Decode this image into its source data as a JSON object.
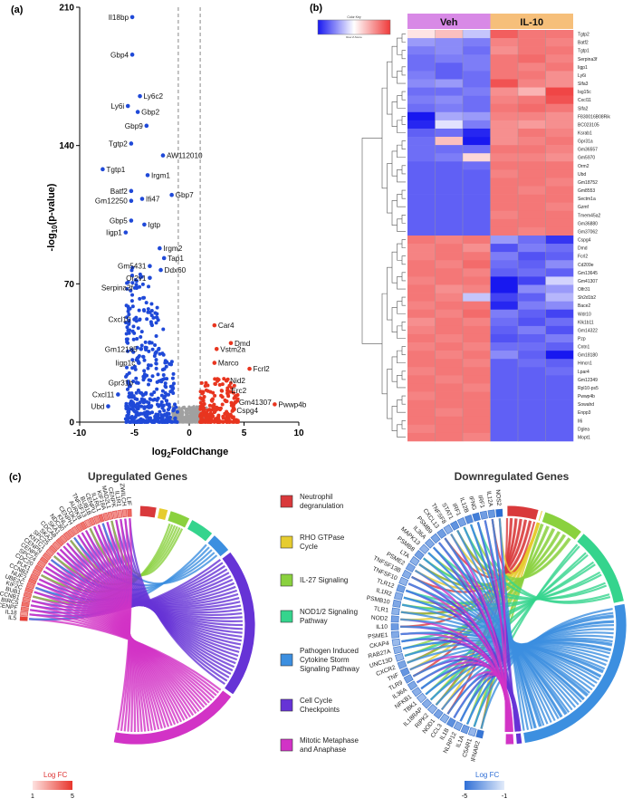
{
  "panels": {
    "a": "(a)",
    "b": "(b)",
    "c": "(c)"
  },
  "colors": {
    "blue": "#1f49d8",
    "red": "#e8351f",
    "grey": "#a0a0a0",
    "heat_low": "#1818f0",
    "heat_high": "#ef3a3a",
    "veh_band": "#d889e6",
    "il10_band": "#f6bf7a"
  },
  "chart_data": [
    {
      "type": "scatter",
      "panel": "a",
      "title": "",
      "xlabel": "log2FoldChange",
      "xlabel_main": "log",
      "xlabel_sub": "2",
      "xlabel_rest": "FoldChange",
      "ylabel": "-log10(p-value)",
      "ylabel_main": "-log",
      "ylabel_sub": "10",
      "ylabel_rest": "(p-value)",
      "xlim": [
        -10,
        10
      ],
      "ylim": [
        0,
        210
      ],
      "xticks": [
        -10,
        -5,
        0,
        5,
        10
      ],
      "yticks": [
        0,
        70,
        140,
        210
      ],
      "threshold_lines_x": [
        -1,
        1
      ],
      "labeled_points": [
        {
          "gene": "Il18bp",
          "x": -5.2,
          "y": 205,
          "side": "left"
        },
        {
          "gene": "Gbp4",
          "x": -5.2,
          "y": 186,
          "side": "left"
        },
        {
          "gene": "Ly6c2",
          "x": -4.5,
          "y": 165,
          "side": "right"
        },
        {
          "gene": "Ly6i",
          "x": -5.6,
          "y": 160,
          "side": "left"
        },
        {
          "gene": "Gbp2",
          "x": -4.7,
          "y": 157,
          "side": "right"
        },
        {
          "gene": "Gbp9",
          "x": -3.9,
          "y": 150,
          "side": "left"
        },
        {
          "gene": "AW112010",
          "x": -2.4,
          "y": 135,
          "side": "right"
        },
        {
          "gene": "Tgtp2",
          "x": -5.3,
          "y": 141,
          "side": "left"
        },
        {
          "gene": "Tgtp1",
          "x": -7.9,
          "y": 128,
          "side": "right"
        },
        {
          "gene": "Irgm1",
          "x": -3.8,
          "y": 125,
          "side": "right"
        },
        {
          "gene": "Gbp7",
          "x": -1.6,
          "y": 115,
          "side": "right"
        },
        {
          "gene": "Batf2",
          "x": -5.3,
          "y": 117,
          "side": "left"
        },
        {
          "gene": "Gm12250",
          "x": -5.3,
          "y": 112,
          "side": "left"
        },
        {
          "gene": "Ifi47",
          "x": -4.3,
          "y": 113,
          "side": "right"
        },
        {
          "gene": "Gbp5",
          "x": -5.3,
          "y": 102,
          "side": "left"
        },
        {
          "gene": "Igtp",
          "x": -4.1,
          "y": 100,
          "side": "right"
        },
        {
          "gene": "Iigp1",
          "x": -5.8,
          "y": 96,
          "side": "left"
        },
        {
          "gene": "Irgm2",
          "x": -2.7,
          "y": 88,
          "side": "right"
        },
        {
          "gene": "Tap1",
          "x": -2.3,
          "y": 83,
          "side": "right"
        },
        {
          "gene": "Gm5431",
          "x": -3.6,
          "y": 79,
          "side": "left"
        },
        {
          "gene": "Ddx60",
          "x": -2.6,
          "y": 77,
          "side": "right"
        },
        {
          "gene": "Or2v1",
          "x": -3.6,
          "y": 73,
          "side": "left"
        },
        {
          "gene": "Serpina3f",
          "x": -4.8,
          "y": 68,
          "side": "left"
        },
        {
          "gene": "Cxcl10",
          "x": -5.0,
          "y": 52,
          "side": "left"
        },
        {
          "gene": "Gm12185",
          "x": -4.4,
          "y": 37,
          "side": "left"
        },
        {
          "gene": "Iigp1c",
          "x": -4.6,
          "y": 30,
          "side": "left"
        },
        {
          "gene": "Gpr31b",
          "x": -4.8,
          "y": 20,
          "side": "left"
        },
        {
          "gene": "Cxcl11",
          "x": -6.5,
          "y": 14,
          "side": "left"
        },
        {
          "gene": "Ubd",
          "x": -7.4,
          "y": 8,
          "side": "left"
        },
        {
          "gene": "Car4",
          "x": 2.3,
          "y": 49,
          "side": "right"
        },
        {
          "gene": "Dmd",
          "x": 3.8,
          "y": 40,
          "side": "right"
        },
        {
          "gene": "Vstm2a",
          "x": 2.5,
          "y": 37,
          "side": "right"
        },
        {
          "gene": "Marco",
          "x": 2.3,
          "y": 30,
          "side": "right"
        },
        {
          "gene": "Fcrl2",
          "x": 5.5,
          "y": 27,
          "side": "right"
        },
        {
          "gene": "Nid2",
          "x": 3.4,
          "y": 21,
          "side": "right"
        },
        {
          "gene": "Erc2",
          "x": 3.5,
          "y": 16,
          "side": "right"
        },
        {
          "gene": "Gm41307",
          "x": 4.2,
          "y": 10,
          "side": "right"
        },
        {
          "gene": "Cspg4",
          "x": 4.0,
          "y": 6,
          "side": "right"
        },
        {
          "gene": "Pwwp4b",
          "x": 7.8,
          "y": 9,
          "side": "right"
        }
      ]
    },
    {
      "type": "heatmap",
      "panel": "b",
      "legend_title": "Color Key",
      "legend_sub": "Row Z-Score",
      "groups": [
        {
          "name": "Veh",
          "samples": 3
        },
        {
          "name": "IL-10",
          "samples": 3
        }
      ],
      "genes": [
        "Tgtp2",
        "Batf2",
        "Tgtp1",
        "Serpina3f",
        "Iigp1",
        "Ly6i",
        "Slfa3",
        "Isg15c",
        "Cxcl11",
        "Slfa2",
        "F830016B08Rik",
        "BC023105",
        "Ksrab1",
        "Gpr31a",
        "Gm36557",
        "Gm5970",
        "Orm2",
        "Ubd",
        "Gm18752",
        "Gm8553",
        "Sectm1a",
        "Gzmf",
        "Tmem45a2",
        "Gm36880",
        "Gm37062",
        "Cspg4",
        "Dmd",
        "Fcrl2",
        "Cd209e",
        "Gm13645",
        "Gm41307",
        "Olfr31",
        "Sh2d1b2",
        "Bace2",
        "Wdr10",
        "Klk1b11",
        "Gm14322",
        "Pzp",
        "Cntn1",
        "Gm18180",
        "Hmcn1",
        "Lpar4",
        "Gm12349",
        "Rpl10-ps5",
        "Pwwp4b",
        "Sowahd",
        "Enpp3",
        "Il6",
        "Dglea",
        "Mopt1"
      ],
      "z_scores": [
        [
          0.1,
          0.4,
          -0.3,
          1.2,
          1.0,
          1.0
        ],
        [
          -0.6,
          -0.7,
          -0.8,
          0.9,
          1.0,
          0.9
        ],
        [
          -0.8,
          -0.7,
          -0.9,
          0.8,
          1.0,
          1.0
        ],
        [
          -0.9,
          -0.8,
          -0.8,
          1.0,
          1.1,
          0.9
        ],
        [
          -0.9,
          -1.0,
          -0.8,
          1.0,
          0.9,
          1.0
        ],
        [
          -0.8,
          -1.0,
          -0.9,
          1.0,
          1.0,
          0.8
        ],
        [
          -0.7,
          -0.6,
          -0.9,
          1.3,
          0.9,
          0.8
        ],
        [
          -0.9,
          -0.9,
          -0.8,
          0.8,
          0.5,
          1.4
        ],
        [
          -0.8,
          -0.7,
          -0.9,
          0.9,
          1.0,
          1.3
        ],
        [
          -0.9,
          -0.8,
          -0.9,
          1.0,
          1.1,
          1.0
        ],
        [
          -1.5,
          -0.5,
          -0.6,
          0.9,
          0.9,
          0.8
        ],
        [
          -1.4,
          -0.1,
          -0.8,
          0.8,
          0.7,
          0.8
        ],
        [
          -1.0,
          -0.9,
          -1.4,
          0.8,
          1.0,
          0.9
        ],
        [
          -0.9,
          0.4,
          -1.5,
          0.8,
          0.9,
          1.0
        ],
        [
          -0.9,
          -0.9,
          -0.9,
          1.0,
          1.0,
          0.9
        ],
        [
          -0.9,
          -0.8,
          0.2,
          0.9,
          0.9,
          0.8
        ],
        [
          -1.0,
          -1.0,
          -0.9,
          1.0,
          1.0,
          1.0
        ],
        [
          -1.0,
          -1.0,
          -1.0,
          0.9,
          1.0,
          1.0
        ],
        [
          -1.0,
          -1.0,
          -1.0,
          1.0,
          1.0,
          0.9
        ],
        [
          -1.0,
          -1.0,
          -1.0,
          1.0,
          0.9,
          1.0
        ],
        [
          -1.0,
          -1.0,
          -1.0,
          1.0,
          1.0,
          1.0
        ],
        [
          -1.0,
          -1.0,
          -1.0,
          1.0,
          1.0,
          0.9
        ],
        [
          -1.0,
          -1.0,
          -1.0,
          0.9,
          1.0,
          1.0
        ],
        [
          -1.0,
          -1.0,
          -1.0,
          1.0,
          1.0,
          1.0
        ],
        [
          -1.0,
          -1.0,
          -1.0,
          1.0,
          0.9,
          1.0
        ],
        [
          1.0,
          0.9,
          1.0,
          -0.6,
          -0.9,
          -1.3
        ],
        [
          0.9,
          1.0,
          0.8,
          -1.1,
          -0.8,
          -0.9
        ],
        [
          0.9,
          1.0,
          1.0,
          -0.8,
          -1.1,
          -1.0
        ],
        [
          1.0,
          0.9,
          1.1,
          -0.9,
          -1.0,
          -0.7
        ],
        [
          1.0,
          1.0,
          0.9,
          -1.0,
          -0.9,
          -1.0
        ],
        [
          0.9,
          1.0,
          1.0,
          -1.5,
          -1.2,
          -0.2
        ],
        [
          1.0,
          0.8,
          0.9,
          -1.6,
          -0.7,
          -0.6
        ],
        [
          1.0,
          0.9,
          -0.3,
          -1.2,
          -1.0,
          -0.4
        ],
        [
          0.9,
          1.0,
          1.0,
          -1.4,
          -0.8,
          -0.7
        ],
        [
          1.0,
          0.9,
          1.1,
          -0.8,
          -1.0,
          -1.2
        ],
        [
          0.8,
          1.0,
          0.9,
          -0.9,
          -1.1,
          -0.9
        ],
        [
          0.9,
          1.0,
          1.0,
          -1.0,
          -0.8,
          -1.1
        ],
        [
          1.0,
          0.9,
          1.0,
          -1.1,
          -1.0,
          -0.8
        ],
        [
          0.9,
          1.0,
          0.9,
          -0.9,
          -0.9,
          -1.0
        ],
        [
          1.0,
          0.9,
          1.0,
          -0.7,
          -1.0,
          -1.5
        ],
        [
          1.0,
          1.0,
          0.9,
          -1.0,
          -0.9,
          -1.0
        ],
        [
          0.9,
          1.0,
          1.0,
          -1.0,
          -1.0,
          -0.9
        ],
        [
          1.0,
          0.9,
          1.0,
          -1.0,
          -1.0,
          -1.0
        ],
        [
          1.0,
          1.0,
          0.9,
          -1.0,
          -1.0,
          -1.0
        ],
        [
          0.9,
          1.0,
          1.0,
          -1.0,
          -1.0,
          -1.0
        ],
        [
          1.0,
          1.0,
          1.0,
          -1.0,
          -1.0,
          -1.0
        ],
        [
          1.0,
          0.9,
          1.0,
          -1.0,
          -1.0,
          -1.0
        ],
        [
          1.0,
          1.0,
          1.0,
          -1.0,
          -1.0,
          -1.0
        ],
        [
          0.9,
          1.0,
          1.0,
          -1.0,
          -1.0,
          -1.0
        ],
        [
          1.0,
          1.0,
          0.9,
          -1.0,
          -1.0,
          -1.0
        ]
      ]
    },
    {
      "type": "chord",
      "panel": "c-left",
      "title": "Upregulated Genes",
      "genes": [
        "IL5",
        "IL18",
        "CENPF",
        "BIRC5",
        "CCNB1",
        "BUB1",
        "KIF2C",
        "UBE2C",
        "NUF2",
        "CCNB2",
        "PLK1",
        "CDC20",
        "SPC24",
        "CENPE",
        "CENPN",
        "KNTC1",
        "SPC25",
        "SKA2",
        "CDCA8",
        "SKA1",
        "NDC80",
        "KNL1",
        "CENPH",
        "CDK1",
        "AURKB",
        "TNFSF13",
        "BUB1B",
        "CENPU",
        "IL1RL1",
        "KIF18A",
        "MAD2L1",
        "CENPK",
        "IL1R1",
        "ZWILCH",
        "LIF"
      ],
      "logfc": [
        4.8,
        2.1,
        3.0,
        3.3,
        2.7,
        2.9,
        3.1,
        2.8,
        3.2,
        2.9,
        2.7,
        3.0,
        2.6,
        3.1,
        2.8,
        2.4,
        2.9,
        2.5,
        3.0,
        2.6,
        2.8,
        2.7,
        2.5,
        2.9,
        3.2,
        2.2,
        2.8,
        2.6,
        3.4,
        2.7,
        2.6,
        2.4,
        2.3,
        2.5,
        3.6
      ],
      "legend_title": "Log FC",
      "legend_ticks": [
        "1",
        "5"
      ]
    },
    {
      "type": "chord",
      "panel": "c-right",
      "title": "Downregulated Genes",
      "genes": [
        "IFNAR2",
        "C5AR1",
        "IL1A",
        "NLRP12",
        "IL1B",
        "CCL3",
        "NOD1",
        "RIPK2",
        "IL18RAP",
        "TBK1",
        "NFKB1",
        "IL36A",
        "TLR9",
        "TNF",
        "CXCR2",
        "UNC13D",
        "RAB27A",
        "CKAP4",
        "PSME1",
        "IL10",
        "NOD2",
        "TLR1",
        "PSMB10",
        "IL1R2",
        "TLR12",
        "TNFSF10",
        "TNFSF13B",
        "PSME2",
        "LTA",
        "PSMB8",
        "MAPK13",
        "IL36A",
        "PSMB9",
        "CXCL13",
        "TNFSF8",
        "STAT1",
        "IRF1",
        "IL12B",
        "IFNG",
        "IRF1",
        "IL12A",
        "NOS2"
      ],
      "logfc": [
        -4.5,
        -2.0,
        -3.0,
        -2.5,
        -3.5,
        -2.2,
        -2.8,
        -2.1,
        -2.4,
        -1.8,
        -2.3,
        -2.6,
        -2.9,
        -3.3,
        -2.7,
        -2.0,
        -2.2,
        -1.9,
        -2.5,
        -3.1,
        -2.8,
        -2.2,
        -2.6,
        -2.3,
        -2.9,
        -2.1,
        -2.4,
        -2.6,
        -2.2,
        -2.9,
        -2.1,
        -2.5,
        -2.7,
        -3.0,
        -2.3,
        -3.4,
        -2.8,
        -3.6,
        -4.2,
        -3.0,
        -3.2,
        -4.8
      ],
      "legend_title": "Log FC",
      "legend_ticks": [
        "-5",
        "-1"
      ]
    }
  ],
  "pathways": [
    {
      "label": "Neutrophil degranulation",
      "lines": [
        "Neutrophil",
        "degranulation"
      ],
      "color": "#d9393b"
    },
    {
      "label": "RHO GTPase Cycle",
      "lines": [
        "RHO GTPase",
        "Cycle"
      ],
      "color": "#e6cc2f"
    },
    {
      "label": "IL-27 Signaling",
      "lines": [
        "IL-27 Signaling"
      ],
      "color": "#8ad13e"
    },
    {
      "label": "NOD1/2 Signaling Pathway",
      "lines": [
        "NOD1/2 Signaling",
        "Pathway"
      ],
      "color": "#35d48d"
    },
    {
      "label": "Pathogen Induced Cytokine Storm Signaling Pathway",
      "lines": [
        "Pathogen Induced",
        "Cytokine Storm",
        "Signaling Pathway"
      ],
      "color": "#3c8fe0"
    },
    {
      "label": "Cell Cycle Checkpoints",
      "lines": [
        "Cell Cycle",
        "Checkpoints"
      ],
      "color": "#6633d6"
    },
    {
      "label": "Mitotic Metaphase and Anaphase",
      "lines": [
        "Mitotic Metaphase",
        "and Anaphase"
      ],
      "color": "#d233c6"
    }
  ]
}
